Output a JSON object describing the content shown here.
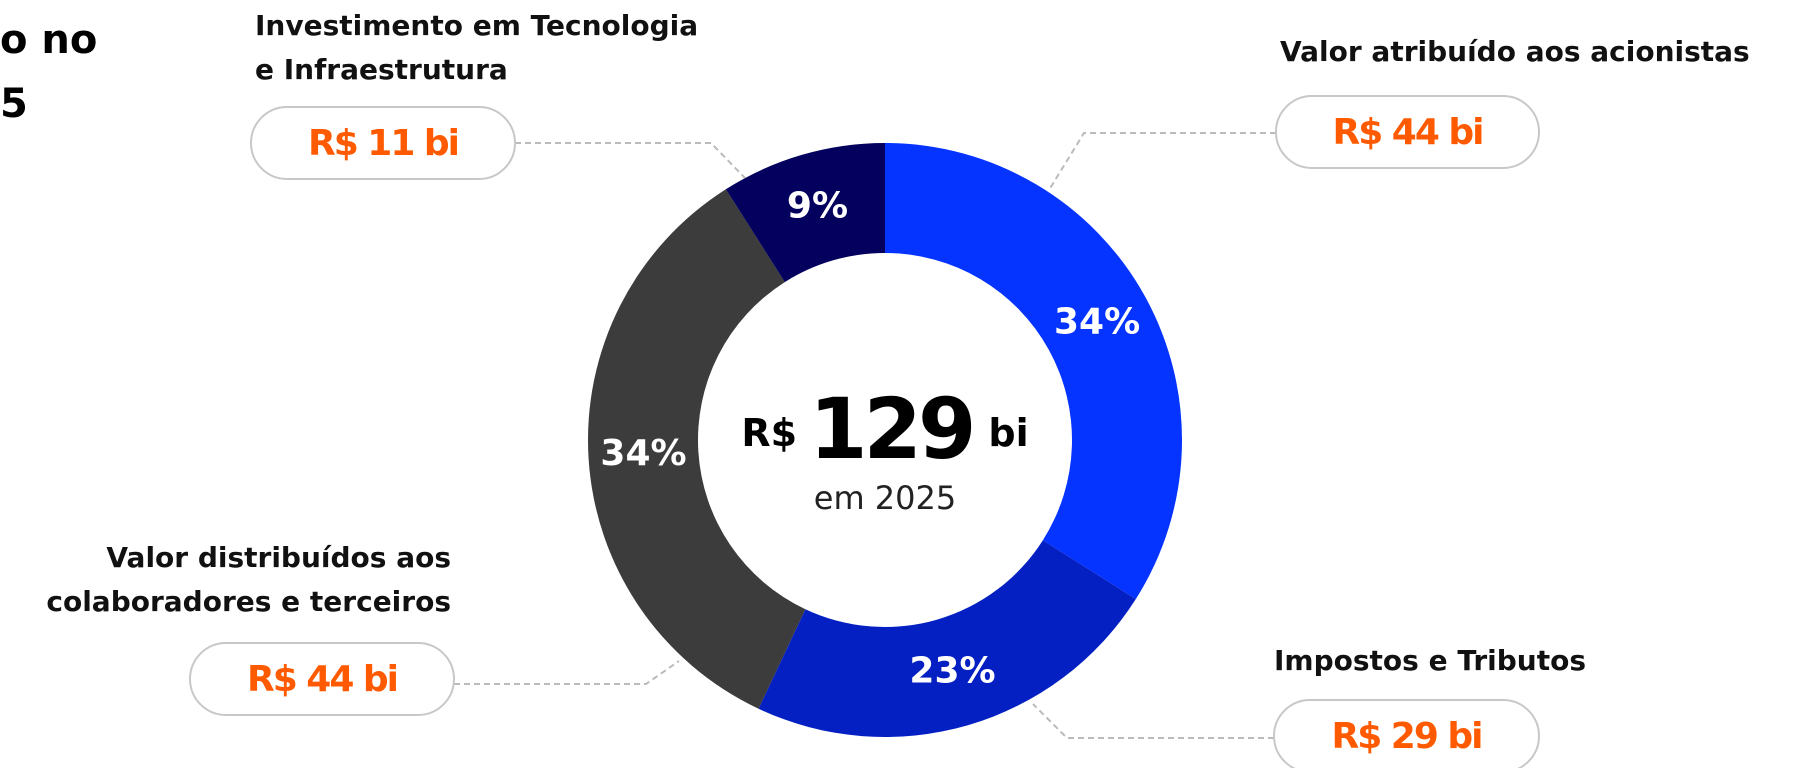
{
  "chart_data": {
    "type": "donut",
    "title_fragments": [
      "o no",
      "5"
    ],
    "categories": [
      "Valor atribuído aos acionistas",
      "Impostos e Tributos",
      "Valor distribuídos aos colaboradores e terceiros",
      "Investimento em Tecnologia e Infraestrutura"
    ],
    "values": [
      34,
      23,
      34,
      9
    ],
    "value_labels": [
      "34%",
      "23%",
      "34%",
      "9%"
    ],
    "colors": [
      "#0533ff",
      "#0420c2",
      "#3c3c3c",
      "#03005e"
    ],
    "amounts": [
      44,
      29,
      44,
      11
    ],
    "amount_labels": [
      "R$ 44 bi",
      "R$ 29 bi",
      "R$ 44 bi",
      "R$ 11 bi"
    ],
    "center": {
      "prefix": "R$",
      "value": 129,
      "suffix": "bi",
      "subtitle": "em 2025"
    }
  }
}
